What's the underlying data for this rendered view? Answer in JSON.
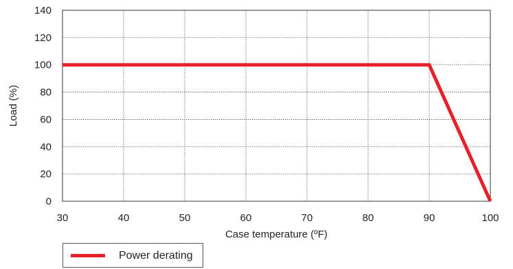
{
  "chart_data": {
    "type": "line",
    "xlabel": "Case temperature (ºF)",
    "ylabel": "Load (%)",
    "xlim": [
      30,
      100
    ],
    "ylim": [
      0,
      140
    ],
    "xticks": [
      30,
      40,
      50,
      60,
      70,
      80,
      90,
      100
    ],
    "yticks": [
      0,
      20,
      40,
      60,
      80,
      100,
      120,
      140
    ],
    "grid": true,
    "legend_position": "bottom-left",
    "series": [
      {
        "name": "Power derating",
        "color": "#e8202a",
        "x": [
          30,
          90,
          100
        ],
        "y": [
          100,
          100,
          0
        ]
      }
    ]
  }
}
